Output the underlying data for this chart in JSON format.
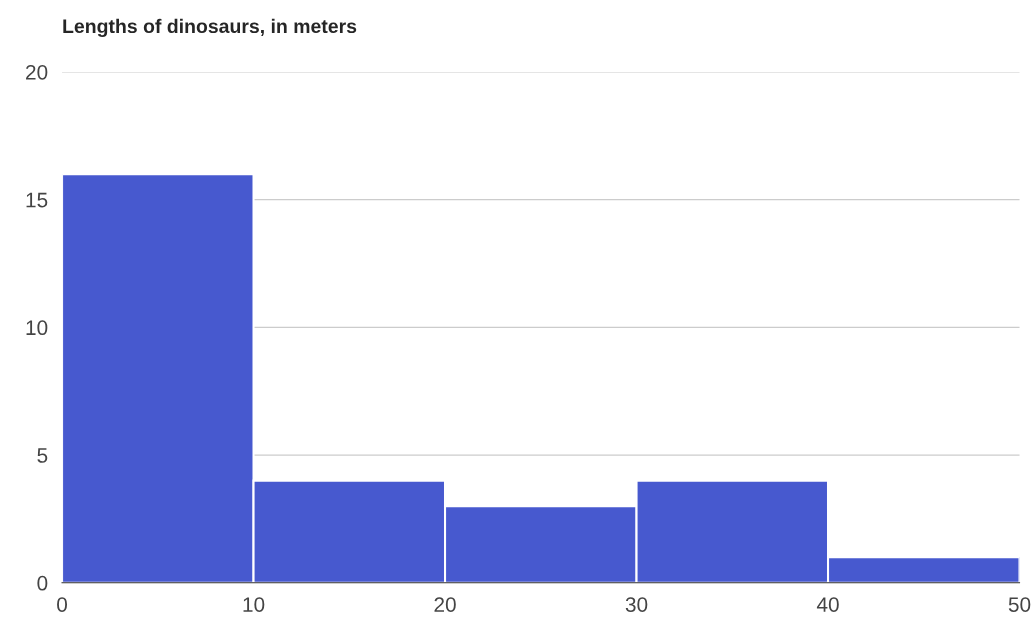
{
  "chart_data": {
    "type": "histogram",
    "title": "Lengths of dinosaurs, in meters",
    "bins": [
      0,
      10,
      20,
      30,
      40,
      50
    ],
    "values": [
      16,
      4,
      3,
      4,
      1
    ],
    "color": "#4759cf",
    "xlim": [
      0,
      50
    ],
    "xticks": [
      0,
      10,
      20,
      30,
      40,
      50
    ],
    "ylim": [
      0,
      20
    ],
    "yticks": [
      0,
      5,
      10,
      15,
      20
    ],
    "grid": "y"
  }
}
